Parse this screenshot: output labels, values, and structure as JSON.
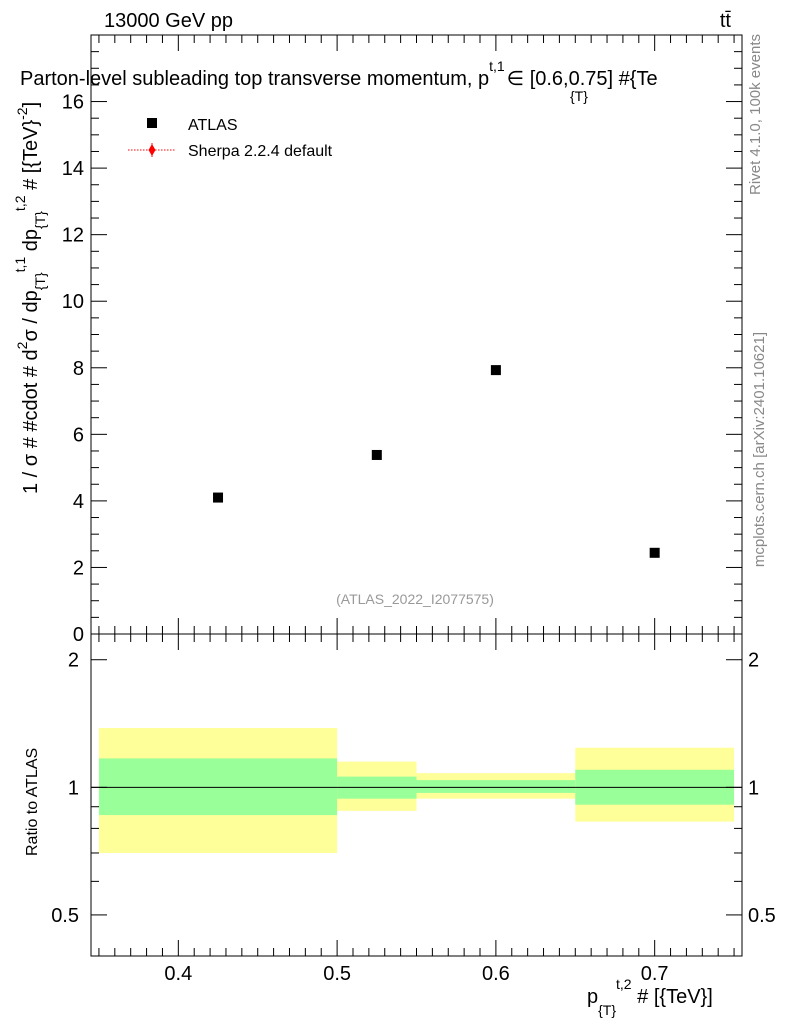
{
  "header": {
    "left": "13000 GeV pp",
    "right": "tt̄"
  },
  "side": {
    "rivet": "Rivet 4.1.0,  100k events",
    "mcplots": "mcplots.cern.ch [arXiv:2401.10621]"
  },
  "chart_data": [
    {
      "type": "scatter",
      "title_parts": {
        "main": "Parton-level subleading top transverse momentum, p",
        "sub": "{T}",
        "sup": "t,1",
        "tail": "∈ [0.6,0.75] #{Te"
      },
      "ylabel_text": "1 / σ # #cdot # d²σ / dp",
      "ylabel_parts": [
        "1 / σ # #cdot # d",
        "2",
        "σ / dp",
        "{T}",
        "t,1",
        " dp",
        "{T}",
        "t,2",
        " # [{TeV}",
        "-2",
        "]"
      ],
      "ylim": [
        0,
        18
      ],
      "yticks": [
        0,
        2,
        4,
        6,
        8,
        10,
        12,
        14,
        16
      ],
      "xlim": [
        0.345,
        0.755
      ],
      "legend": [
        {
          "label": "ATLAS",
          "marker": "square",
          "color": "#000000"
        },
        {
          "label": "Sherpa 2.2.4 default",
          "marker": "diamond",
          "color": "#ff0000"
        }
      ],
      "series": [
        {
          "name": "ATLAS",
          "x": [
            0.425,
            0.525,
            0.6,
            0.7
          ],
          "y": [
            4.1,
            5.38,
            7.93,
            2.44
          ]
        }
      ],
      "watermark": "(ATLAS_2022_I2077575)"
    },
    {
      "type": "area",
      "ylabel": "Ratio to ATLAS",
      "ylim": [
        0.4,
        2.3
      ],
      "yticks": [
        0.5,
        1,
        2
      ],
      "ytick_labels": [
        "0.5",
        "1",
        "2"
      ],
      "xlim": [
        0.345,
        0.755
      ],
      "xticks": [
        0.4,
        0.5,
        0.6,
        0.7
      ],
      "xtick_labels": [
        "0.4",
        "0.5",
        "0.6",
        "0.7"
      ],
      "xlabel_parts": [
        "p",
        "{T}",
        "t,2",
        " # [{TeV}]"
      ],
      "bands": [
        {
          "x0": 0.35,
          "x1": 0.5,
          "inner": [
            0.86,
            1.17
          ],
          "outer": [
            0.7,
            1.38
          ]
        },
        {
          "x0": 0.5,
          "x1": 0.55,
          "inner": [
            0.94,
            1.06
          ],
          "outer": [
            0.88,
            1.15
          ]
        },
        {
          "x0": 0.55,
          "x1": 0.65,
          "inner": [
            0.97,
            1.04
          ],
          "outer": [
            0.94,
            1.08
          ]
        },
        {
          "x0": 0.65,
          "x1": 0.75,
          "inner": [
            0.91,
            1.1
          ],
          "outer": [
            0.83,
            1.24
          ]
        }
      ],
      "colors": {
        "inner": "#99ff99",
        "outer": "#ffff99",
        "line": "#000000"
      }
    }
  ]
}
